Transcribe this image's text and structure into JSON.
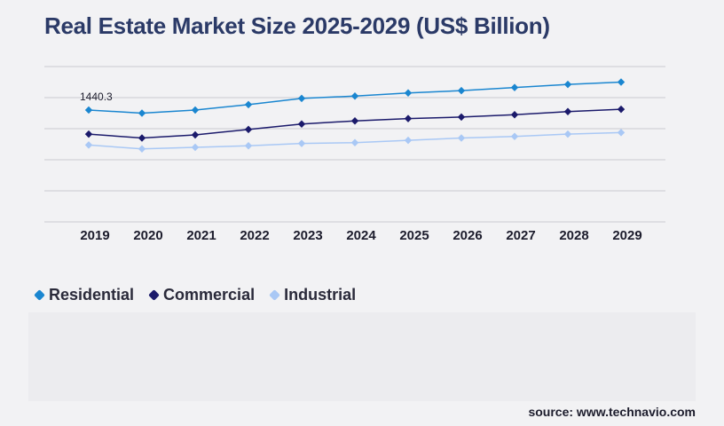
{
  "title": "Real Estate Market Size 2025-2029 (US$ Billion)",
  "source": "source: www.technavio.com",
  "chart_data": {
    "type": "line",
    "title": "Real Estate Market Size 2025-2029 (US$ Billion)",
    "x": [
      "2019",
      "2020",
      "2021",
      "2022",
      "2023",
      "2024",
      "2025",
      "2026",
      "2027",
      "2028",
      "2029"
    ],
    "series": [
      {
        "name": "Residential",
        "color": "#1a86d0",
        "values": [
          1440.3,
          1400,
          1440,
          1510,
          1590,
          1620,
          1660,
          1690,
          1730,
          1770,
          1800
        ]
      },
      {
        "name": "Commercial",
        "color": "#1b1a6b",
        "values": [
          1130,
          1080,
          1120,
          1190,
          1260,
          1300,
          1330,
          1350,
          1380,
          1420,
          1450
        ]
      },
      {
        "name": "Industrial",
        "color": "#a9c8f5",
        "values": [
          990,
          940,
          960,
          980,
          1010,
          1020,
          1050,
          1080,
          1100,
          1130,
          1150
        ]
      }
    ],
    "annotations": [
      {
        "series": "Residential",
        "x": "2019",
        "text": "1440.3"
      }
    ],
    "ylim": [
      0,
      2000
    ],
    "y_axis_labels": false,
    "grid": true,
    "legend": "bottom-left"
  }
}
